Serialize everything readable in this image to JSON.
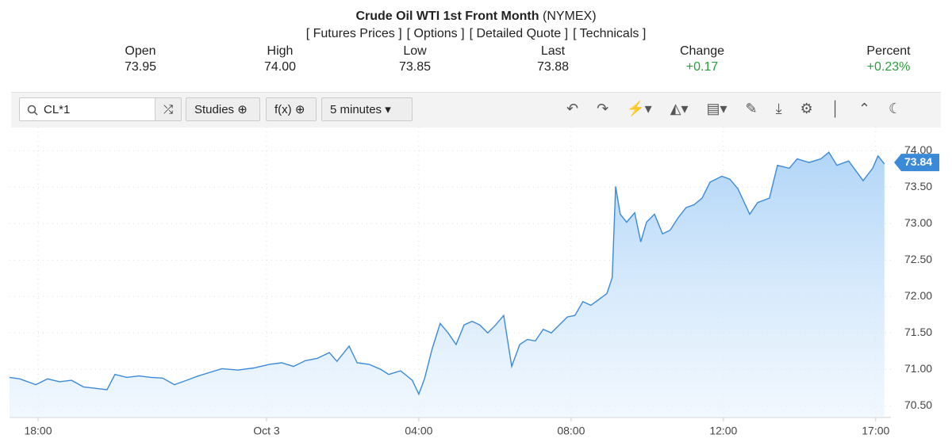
{
  "header": {
    "title": "Crude Oil WTI 1st Front Month",
    "exchange": "(NYMEX)",
    "links": [
      "[ Futures Prices ]",
      "[ Options ]",
      "[ Detailed Quote ]",
      "[ Technicals ]"
    ]
  },
  "quote": [
    {
      "label": "Open",
      "value": "73.95"
    },
    {
      "label": "High",
      "value": "74.00"
    },
    {
      "label": "Low",
      "value": "73.85"
    },
    {
      "label": "Last",
      "value": "73.88"
    },
    {
      "label": "Change",
      "value": "+0.17"
    },
    {
      "label": "Percent",
      "value": "+0.23%"
    }
  ],
  "toolbar": {
    "symbol": "CL*1",
    "studies": "Studies",
    "fx": "f(x)",
    "interval": "5 minutes"
  },
  "chart_data": {
    "type": "line",
    "color": "#3b8ad8",
    "grid": true,
    "current_price": 73.84,
    "xlim": [
      -0.75,
      22.4
    ],
    "ylim": [
      70.34,
      74.33
    ],
    "xticks": [
      {
        "value": 0,
        "label": "18:00"
      },
      {
        "value": 6,
        "label": "Oct 3"
      },
      {
        "value": 10,
        "label": "04:00"
      },
      {
        "value": 14,
        "label": "08:00"
      },
      {
        "value": 18,
        "label": "12:00"
      },
      {
        "value": 22,
        "label": "17:00"
      }
    ],
    "yticks": [
      {
        "value": 70.5,
        "label": "70.50"
      },
      {
        "value": 71,
        "label": "71.00"
      },
      {
        "value": 71.5,
        "label": "71.50"
      },
      {
        "value": 72,
        "label": "72.00"
      },
      {
        "value": 72.5,
        "label": "72.50"
      },
      {
        "value": 73,
        "label": "73.00"
      },
      {
        "value": 73.5,
        "label": "73.50"
      },
      {
        "value": 74,
        "label": "74.00"
      }
    ],
    "x": [
      -0.75,
      -0.48,
      -0.06,
      0.25,
      0.56,
      0.88,
      1.19,
      1.5,
      1.81,
      2.02,
      2.33,
      2.65,
      2.96,
      3.27,
      3.58,
      3.9,
      4.21,
      4.52,
      4.83,
      5.25,
      5.67,
      6.08,
      6.4,
      6.71,
      7.02,
      7.33,
      7.65,
      7.85,
      8.17,
      8.38,
      8.69,
      9,
      9.21,
      9.52,
      9.83,
      10,
      10.15,
      10.35,
      10.56,
      10.77,
      10.98,
      11.19,
      11.4,
      11.6,
      11.81,
      12.02,
      12.23,
      12.44,
      12.65,
      12.85,
      13.06,
      13.27,
      13.48,
      13.69,
      13.9,
      14.1,
      14.31,
      14.52,
      14.73,
      14.94,
      15.08,
      15.17,
      15.29,
      15.46,
      15.67,
      15.83,
      15.98,
      16.19,
      16.4,
      16.6,
      16.81,
      17.02,
      17.23,
      17.44,
      17.65,
      17.96,
      18.17,
      18.38,
      18.69,
      18.9,
      19.21,
      19.42,
      19.73,
      19.94,
      20.25,
      20.56,
      20.77,
      20.98,
      21.29,
      21.67,
      21.92,
      22.06,
      22.23
    ],
    "values": [
      70.89,
      70.87,
      70.79,
      70.87,
      70.83,
      70.85,
      70.76,
      70.74,
      70.72,
      70.93,
      70.89,
      70.91,
      70.89,
      70.88,
      70.79,
      70.85,
      70.91,
      70.96,
      71.01,
      70.99,
      71.02,
      71.07,
      71.09,
      71.04,
      71.12,
      71.15,
      71.23,
      71.11,
      71.32,
      71.09,
      71.07,
      71.0,
      70.93,
      70.98,
      70.85,
      70.66,
      70.87,
      71.28,
      71.63,
      71.5,
      71.34,
      71.61,
      71.66,
      71.61,
      71.5,
      71.61,
      71.74,
      71.04,
      71.34,
      71.41,
      71.39,
      71.55,
      71.5,
      71.61,
      71.72,
      71.74,
      71.93,
      71.88,
      71.96,
      72.04,
      72.26,
      73.51,
      73.13,
      73.02,
      73.15,
      72.75,
      73.02,
      73.13,
      72.86,
      72.91,
      73.08,
      73.22,
      73.26,
      73.35,
      73.57,
      73.65,
      73.61,
      73.48,
      73.13,
      73.29,
      73.35,
      73.8,
      73.76,
      73.89,
      73.84,
      73.89,
      73.98,
      73.8,
      73.86,
      73.59,
      73.76,
      73.93,
      73.82
    ]
  }
}
